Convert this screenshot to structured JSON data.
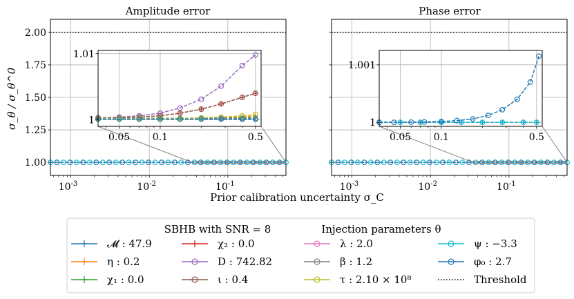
{
  "figure": {
    "ylabel": "σ_θ / σ_θ^0",
    "xlabel": "Prior calibration uncertainty σ_C",
    "threshold": 2.0
  },
  "chart_data": [
    {
      "type": "line",
      "title": "Amplitude error",
      "xscale": "log",
      "xlim": [
        0.00055,
        0.55
      ],
      "ylim": [
        0.9,
        2.1
      ],
      "yticks": [
        1.0,
        1.25,
        1.5,
        1.75,
        2.0
      ],
      "ytick_labels": [
        "1.00",
        "1.25",
        "1.50",
        "1.75",
        "2.00"
      ],
      "xticks": [
        0.001,
        0.01,
        0.1
      ],
      "xtick_labels": [
        "10^-3",
        "10^-2",
        "10^-1"
      ],
      "grid": true,
      "inset": {
        "xlim": [
          0.035,
          0.55
        ],
        "ylim": [
          0.999,
          1.0105
        ],
        "xticks": [
          0.05,
          0.1,
          0.5
        ],
        "xtick_labels": [
          "0.05",
          "0.1",
          "0.5"
        ],
        "yticks": [
          1.0,
          1.01
        ],
        "ytick_labels": [
          "1",
          "1.01"
        ]
      }
    },
    {
      "type": "line",
      "title": "Phase error",
      "xscale": "log",
      "xlim": [
        0.00055,
        0.55
      ],
      "ylim": [
        0.9,
        2.1
      ],
      "yticks": [
        1.0,
        1.25,
        1.5,
        1.75,
        2.0
      ],
      "ytick_labels": [
        "1.00",
        "1.25",
        "1.50",
        "1.75",
        "2.00"
      ],
      "xticks": [
        0.001,
        0.01,
        0.1
      ],
      "xtick_labels": [
        "10^-3",
        "10^-2",
        "10^-1"
      ],
      "grid": true,
      "inset": {
        "xlim": [
          0.035,
          0.55
        ],
        "ylim": [
          0.99993,
          1.00125
        ],
        "xticks": [
          0.05,
          0.1,
          0.5
        ],
        "xtick_labels": [
          "0.05",
          "0.1",
          "0.5"
        ],
        "yticks": [
          1.0,
          1.001
        ],
        "ytick_labels": [
          "1",
          "1.001"
        ]
      }
    }
  ],
  "series_inset": {
    "amplitude": [
      {
        "name": "M",
        "x": [
          0.035,
          0.05,
          0.07,
          0.1,
          0.14,
          0.2,
          0.28,
          0.4,
          0.5
        ],
        "y": [
          1.0002,
          1.0002,
          1.0002,
          1.0002,
          1.0002,
          1.0002,
          1.0002,
          1.0003,
          1.0003
        ]
      },
      {
        "name": "eta",
        "x": [
          0.035,
          0.05,
          0.07,
          0.1,
          0.14,
          0.2,
          0.28,
          0.4,
          0.5
        ],
        "y": [
          1.0002,
          1.0002,
          1.0002,
          1.0002,
          1.0002,
          1.0003,
          1.0003,
          1.0004,
          1.0006
        ]
      },
      {
        "name": "chi1",
        "x": [
          0.035,
          0.05,
          0.07,
          0.1,
          0.14,
          0.2,
          0.28,
          0.4,
          0.5
        ],
        "y": [
          1.0002,
          1.0002,
          1.0002,
          1.0002,
          1.0002,
          1.0002,
          1.0002,
          1.0003,
          1.0003
        ]
      },
      {
        "name": "chi2",
        "x": [
          0.035,
          0.05,
          0.07,
          0.1,
          0.14,
          0.2,
          0.28,
          0.4,
          0.5
        ],
        "y": [
          1.0003,
          1.0003,
          1.0004,
          1.0006,
          1.001,
          1.0016,
          1.0024,
          1.0034,
          1.004
        ]
      },
      {
        "name": "D",
        "x": [
          0.035,
          0.05,
          0.07,
          0.1,
          0.14,
          0.2,
          0.28,
          0.4,
          0.5
        ],
        "y": [
          1.0003,
          1.0004,
          1.0006,
          1.001,
          1.0018,
          1.0031,
          1.0051,
          1.0082,
          1.0098
        ]
      },
      {
        "name": "iota",
        "x": [
          0.035,
          0.05,
          0.07,
          0.1,
          0.14,
          0.2,
          0.28,
          0.4,
          0.5
        ],
        "y": [
          1.0003,
          1.0003,
          1.0004,
          1.0006,
          1.001,
          1.0016,
          1.0024,
          1.0034,
          1.004
        ]
      },
      {
        "name": "lambda",
        "x": [
          0.035,
          0.05,
          0.07,
          0.1,
          0.14,
          0.2,
          0.28,
          0.4,
          0.5
        ],
        "y": [
          1.0002,
          1.0002,
          1.0002,
          1.0002,
          1.0002,
          1.0002,
          1.0002,
          1.0002,
          1.0002
        ]
      },
      {
        "name": "beta",
        "x": [
          0.035,
          0.05,
          0.07,
          0.1,
          0.14,
          0.2,
          0.28,
          0.4,
          0.5
        ],
        "y": [
          1.0002,
          1.0002,
          1.0002,
          1.0002,
          1.0002,
          1.0002,
          1.0002,
          1.0002,
          1.0002
        ]
      },
      {
        "name": "tau",
        "x": [
          0.035,
          0.05,
          0.07,
          0.1,
          0.14,
          0.2,
          0.28,
          0.4,
          0.5
        ],
        "y": [
          1.0002,
          1.0002,
          1.0002,
          1.0002,
          1.0002,
          1.0003,
          1.0004,
          1.0006,
          1.0008
        ]
      },
      {
        "name": "psi",
        "x": [
          0.035,
          0.05,
          0.07,
          0.1,
          0.14,
          0.2,
          0.28,
          0.4,
          0.5
        ],
        "y": [
          1.0001,
          1.0001,
          1.0001,
          1.0001,
          1.0001,
          1.0001,
          1.0001,
          1.0001,
          1.0001
        ]
      },
      {
        "name": "phi0",
        "x": [
          0.035,
          0.05,
          0.07,
          0.1,
          0.14,
          0.2,
          0.28,
          0.4,
          0.5
        ],
        "y": [
          1.0001,
          1.0001,
          1.0001,
          1.0001,
          1.0001,
          1.0001,
          1.0001,
          1.0001,
          1.0001
        ]
      }
    ],
    "phase": [
      {
        "name": "M",
        "x": [
          0.035,
          0.05,
          0.07,
          0.1,
          0.14,
          0.2,
          0.28,
          0.4,
          0.5
        ],
        "y": [
          1.0,
          1.0,
          1.0,
          1.0,
          1.0,
          1.0,
          1.0,
          1.0,
          1.0
        ]
      },
      {
        "name": "psi",
        "x": [
          0.035,
          0.05,
          0.07,
          0.1,
          0.14,
          0.2,
          0.28,
          0.4,
          0.5
        ],
        "y": [
          1.0,
          1.0,
          1.0,
          1.0,
          1.0,
          1.0,
          1.0,
          1.0,
          1.0
        ]
      },
      {
        "name": "phi0",
        "x": [
          0.035,
          0.045,
          0.06,
          0.075,
          0.1,
          0.13,
          0.17,
          0.22,
          0.28,
          0.36,
          0.45,
          0.52
        ],
        "y": [
          1.0,
          1.0,
          1.000003,
          1.000006,
          1.000015,
          1.00003,
          1.00006,
          1.00012,
          1.00022,
          1.0004,
          1.0007,
          1.00115
        ]
      }
    ]
  },
  "legend": {
    "title": "SBHB with SNR = 8",
    "subtitle": "Injection parameters θ",
    "entries": [
      {
        "key": "M",
        "label": "𝓜 : 47.9",
        "color": "#1f77b4",
        "marker": "plus",
        "dash": "solid"
      },
      {
        "key": "eta",
        "label": "η : 0.2",
        "color": "#ff7f0e",
        "marker": "plus",
        "dash": "solid"
      },
      {
        "key": "chi1",
        "label": "χ₁ : 0.0",
        "color": "#2ca02c",
        "marker": "plus",
        "dash": "solid"
      },
      {
        "key": "chi2",
        "label": "χ₂ : 0.0",
        "color": "#d62728",
        "marker": "plus",
        "dash": "solid"
      },
      {
        "key": "D",
        "label": "D : 742.82",
        "color": "#9467bd",
        "marker": "circle",
        "dash": "solid"
      },
      {
        "key": "iota",
        "label": "ι : 0.4",
        "color": "#8c564b",
        "marker": "circle",
        "dash": "solid"
      },
      {
        "key": "lambda",
        "label": "λ : 2.0",
        "color": "#e377c2",
        "marker": "circle",
        "dash": "solid"
      },
      {
        "key": "beta",
        "label": "β : 1.2",
        "color": "#7f7f7f",
        "marker": "circle",
        "dash": "solid"
      },
      {
        "key": "tau",
        "label": "τ : 2.10 × 10⁸",
        "color": "#bcbd22",
        "marker": "circle",
        "dash": "solid"
      },
      {
        "key": "psi",
        "label": "ψ : −3.3",
        "color": "#17becf",
        "marker": "circle",
        "dash": "solid"
      },
      {
        "key": "phi0",
        "label": "φ₀ : 2.7",
        "color": "#1f77b4",
        "marker": "circle",
        "dash": "solid"
      },
      {
        "key": "thr",
        "label": "Threshold",
        "color": "#000000",
        "marker": "none",
        "dash": "dotted"
      }
    ]
  }
}
